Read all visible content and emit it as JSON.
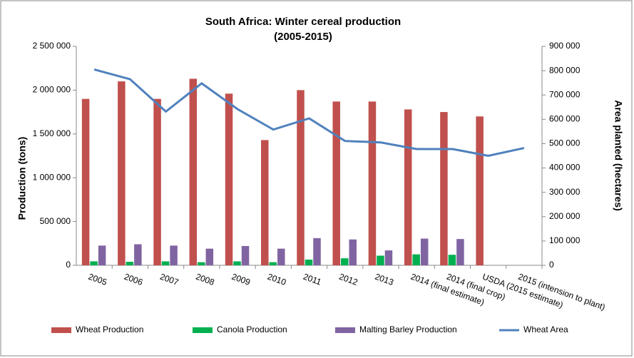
{
  "chart_data": {
    "type": "bar",
    "title": "South Africa: Winter cereal production",
    "subtitle": "(2005-2015)",
    "y_label": "Production  (tons)",
    "y2_label": "Area planted (hectares)",
    "categories": [
      "2005",
      "2006",
      "2007",
      "2008",
      "2009",
      "2010",
      "2011",
      "2012",
      "2013",
      "2014 (final estimate)",
      "2014 (final crop)",
      "USDA (2015 estimate)",
      "2015 (intension to plant)"
    ],
    "series": [
      {
        "name": "Wheat Production",
        "color": "#c0504d",
        "type": "bar",
        "values": [
          1900000,
          2100000,
          1900000,
          2130000,
          1960000,
          1430000,
          2000000,
          1870000,
          1870000,
          1780000,
          1750000,
          1700000,
          null
        ]
      },
      {
        "name": "Canola Production",
        "color": "#00b050",
        "type": "bar",
        "values": [
          45000,
          40000,
          45000,
          35000,
          45000,
          35000,
          65000,
          80000,
          110000,
          125000,
          120000,
          null,
          null
        ]
      },
      {
        "name": "Malting Barley Production",
        "color": "#8064a2",
        "type": "bar",
        "values": [
          225000,
          240000,
          225000,
          190000,
          220000,
          190000,
          310000,
          295000,
          170000,
          305000,
          300000,
          null,
          null
        ]
      },
      {
        "name": "Wheat Area",
        "color": "#4f81bd",
        "type": "line",
        "axis": "y2",
        "values": [
          805000,
          765000,
          632000,
          748000,
          642000,
          558000,
          604000,
          511000,
          505000,
          478000,
          478000,
          450000,
          482000
        ]
      }
    ],
    "ylim": [
      0,
      2500000
    ],
    "yticks": [
      0,
      {
        "value": 500000,
        "label": "500 000"
      },
      {
        "value": 1000000,
        "label": "1 000 000"
      },
      {
        "value": 1500000,
        "label": "1 500 000"
      },
      {
        "value": 2000000,
        "label": "2 000 000"
      },
      {
        "value": 2500000,
        "label": "2 500 000"
      }
    ],
    "y2lim": [
      0,
      900000
    ],
    "y2ticks": [
      0,
      {
        "value": 100000,
        "label": "100 000"
      },
      {
        "value": 200000,
        "label": "200 000"
      },
      {
        "value": 300000,
        "label": "300 000"
      },
      {
        "value": 400000,
        "label": "400 000"
      },
      {
        "value": 500000,
        "label": "500 000"
      },
      {
        "value": 600000,
        "label": "600 000"
      },
      {
        "value": 700000,
        "label": "700 000"
      },
      {
        "value": 800000,
        "label": "800 000"
      },
      {
        "value": 900000,
        "label": "900 000"
      }
    ],
    "legend": "bottom"
  }
}
